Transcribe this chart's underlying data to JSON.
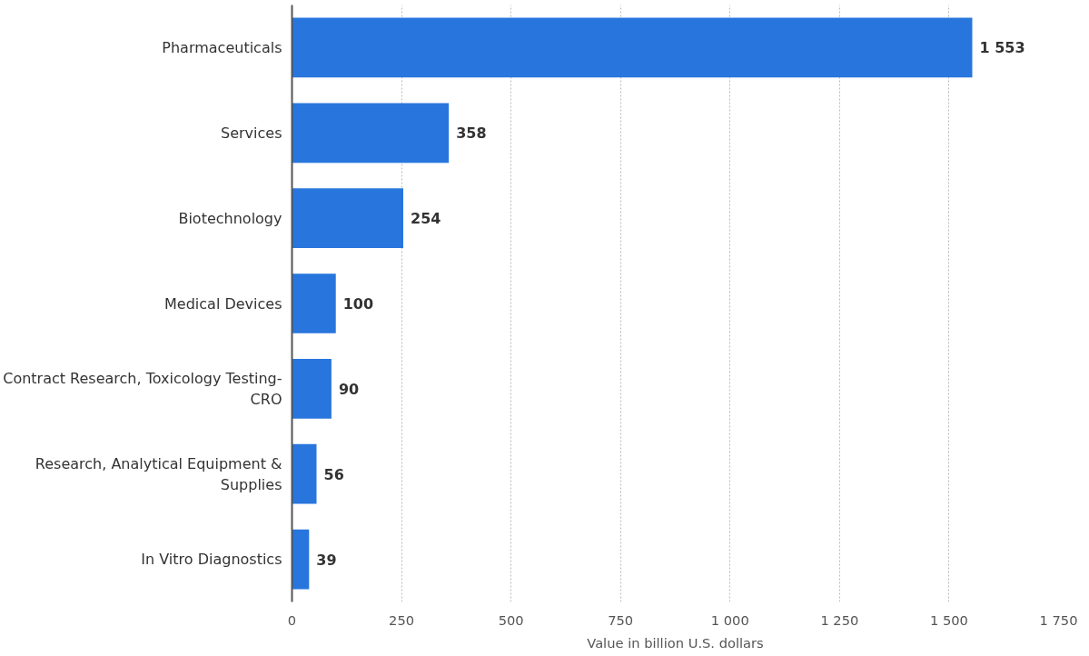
{
  "chart_data": {
    "type": "bar",
    "orientation": "horizontal",
    "xlabel": "Value in billion U.S. dollars",
    "categories": [
      "Pharmaceuticals",
      "Services",
      "Biotechnology",
      "Medical Devices",
      "Contract Research, Toxicology Testing-CRO",
      "Research, Analytical Equipment & Supplies",
      "In Vitro Diagnostics"
    ],
    "values": [
      1553,
      358,
      254,
      100,
      90,
      56,
      39
    ],
    "value_labels": [
      "1 553",
      "358",
      "254",
      "100",
      "90",
      "56",
      "39"
    ],
    "color": "#2876dd",
    "xlim": [
      0,
      1750
    ],
    "xticks": [
      0,
      250,
      500,
      750,
      {
        "value": 1000,
        "label": "1 000"
      },
      {
        "value": 1250,
        "label": "1 250"
      },
      {
        "value": 1500,
        "label": "1 500"
      },
      {
        "value": 1750,
        "label": "1 750"
      }
    ],
    "grid": "x"
  }
}
